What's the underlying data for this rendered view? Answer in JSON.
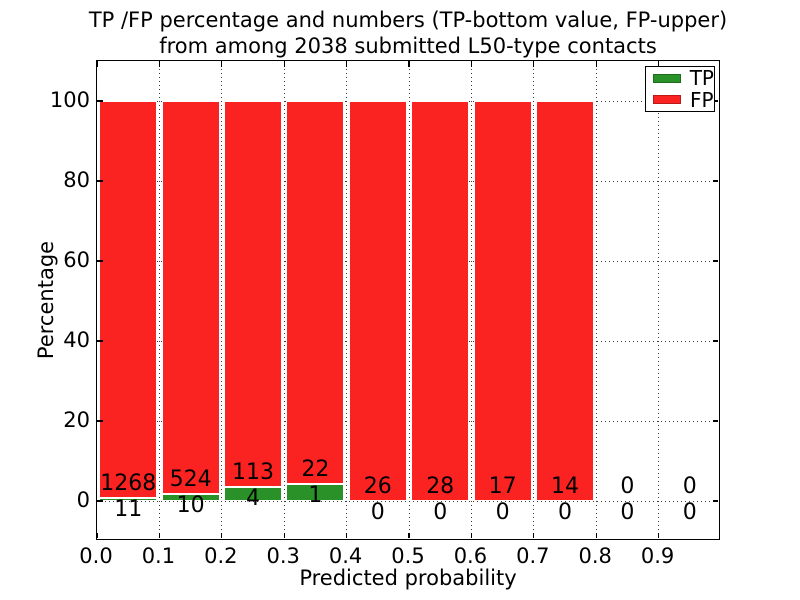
{
  "title": {
    "line1": "TP /FP percentage and numbers (TP-bottom value, FP-upper)",
    "line2": "from among 2038 submitted L50-type contacts"
  },
  "chart_data": {
    "type": "bar",
    "stacked": true,
    "orientation": "vertical",
    "unit": "percent-of-bin",
    "total_contacts": 2038,
    "bin_starts": [
      0.0,
      0.1,
      0.2,
      0.3,
      0.4,
      0.5,
      0.6,
      0.7,
      0.8,
      0.9
    ],
    "bin_width": 0.1,
    "series": [
      {
        "name": "TP",
        "color": "#2a9128",
        "counts": [
          11,
          10,
          4,
          1,
          0,
          0,
          0,
          0,
          0,
          0
        ]
      },
      {
        "name": "FP",
        "color": "#fb2321",
        "counts": [
          1268,
          524,
          113,
          22,
          26,
          28,
          17,
          14,
          0,
          0
        ]
      }
    ],
    "annotation_note": "TP count printed below/at bar base, FP count printed above TP segment",
    "xlabel": "Predicted probability",
    "ylabel": "Percentage",
    "x_tick_labels": [
      "0.0",
      "0.1",
      "0.2",
      "0.3",
      "0.4",
      "0.5",
      "0.6",
      "0.7",
      "0.8",
      "0.9"
    ],
    "y_tick_values": [
      0,
      20,
      40,
      60,
      80,
      100
    ],
    "y_tick_labels": [
      "0",
      "20",
      "40",
      "60",
      "80",
      "100"
    ],
    "xlim": [
      0.0,
      1.0
    ],
    "ylim": [
      -10,
      110
    ],
    "grid": {
      "style": "dotted",
      "color": "#3a3a3a"
    },
    "legend": {
      "position": "upper-right",
      "entries": [
        {
          "label": "TP",
          "color": "#2a9128"
        },
        {
          "label": "FP",
          "color": "#fb2321"
        }
      ]
    }
  }
}
